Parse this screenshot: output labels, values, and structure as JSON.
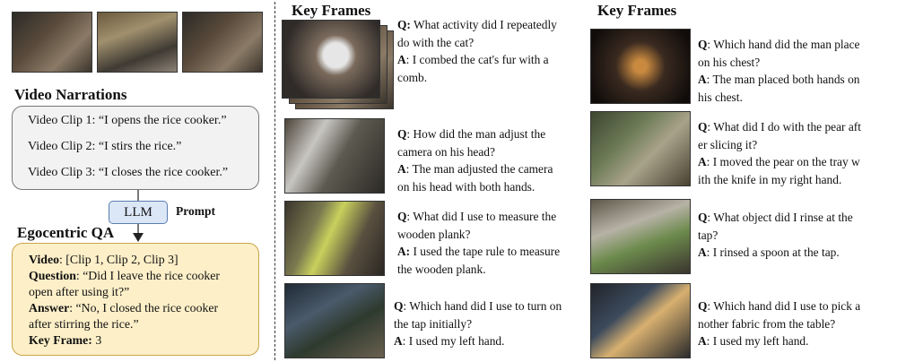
{
  "left": {
    "narrations_title": "Video Narrations",
    "clips": [
      "Video Clip 1: “I opens the rice cooker.”",
      "Video Clip 2: “I stirs the rice.”",
      "Video Clip 3: “I closes the rice cooker.”"
    ],
    "llm_label": "LLM",
    "prompt_label": "Prompt",
    "qa_title": "Egocentric QA",
    "video_label": "Video",
    "video_value": ": [Clip 1, Clip 2, Clip 3]",
    "question_label": "Question",
    "question_line1": ": “Did I leave the rice cooker",
    "question_line2": "open after using it?”",
    "answer_label": "Answer",
    "answer_line1": ": “No, I closed the rice cooker",
    "answer_line2": "after stirring the rice.”",
    "keyframe_label": "Key Frame:",
    "keyframe_value": " 3"
  },
  "col1": {
    "title": "Key Frames",
    "items": [
      {
        "q_label": "Q:",
        "q1": " What activity did I repeatedly",
        "q2": "do with the cat?",
        "a_label": "A",
        "a1": ": I combed the cat's fur with a",
        "a2": "comb."
      },
      {
        "q_label": "Q",
        "q1": ": How did the man adjust the",
        "q2": "camera on his head?",
        "a_label": "A",
        "a1": ": The man adjusted the camera",
        "a2": "on his head with both hands."
      },
      {
        "q_label": "Q",
        "q1": ": What did I use to measure the",
        "q2": "wooden plank?",
        "a_label": "A:",
        "a1": " I used the tape rule to measure",
        "a2": "the wooden plank."
      },
      {
        "q_label": "Q",
        "q1": ": Which hand did I use to turn on",
        "q2": "the tap initially?",
        "a_label": "A",
        "a1": ": I used my left hand.",
        "a2": ""
      }
    ]
  },
  "col2": {
    "title": "Key Frames",
    "items": [
      {
        "q_label": "Q",
        "q1": ": Which hand did the man place",
        "q2": "on his chest?",
        "a_label": "A",
        "a1": ": The man placed both hands on",
        "a2": "his chest."
      },
      {
        "q_label": "Q",
        "q1": ": What did I do with the pear aft",
        "q2": "er slicing it?",
        "a_label": "A",
        "a1": ": I moved the pear on the tray w",
        "a2": "ith the knife in my right hand."
      },
      {
        "q_label": "Q",
        "q1": ": What object did I rinse at the",
        "q2": "tap?",
        "a_label": "A",
        "a1": ": I rinsed a spoon at the tap.",
        "a2": ""
      },
      {
        "q_label": "Q",
        "q1": ": Which hand did I use to pick a",
        "q2": "nother fabric from the table?",
        "a_label": "A",
        "a1": ": I used my left hand.",
        "a2": ""
      }
    ]
  }
}
